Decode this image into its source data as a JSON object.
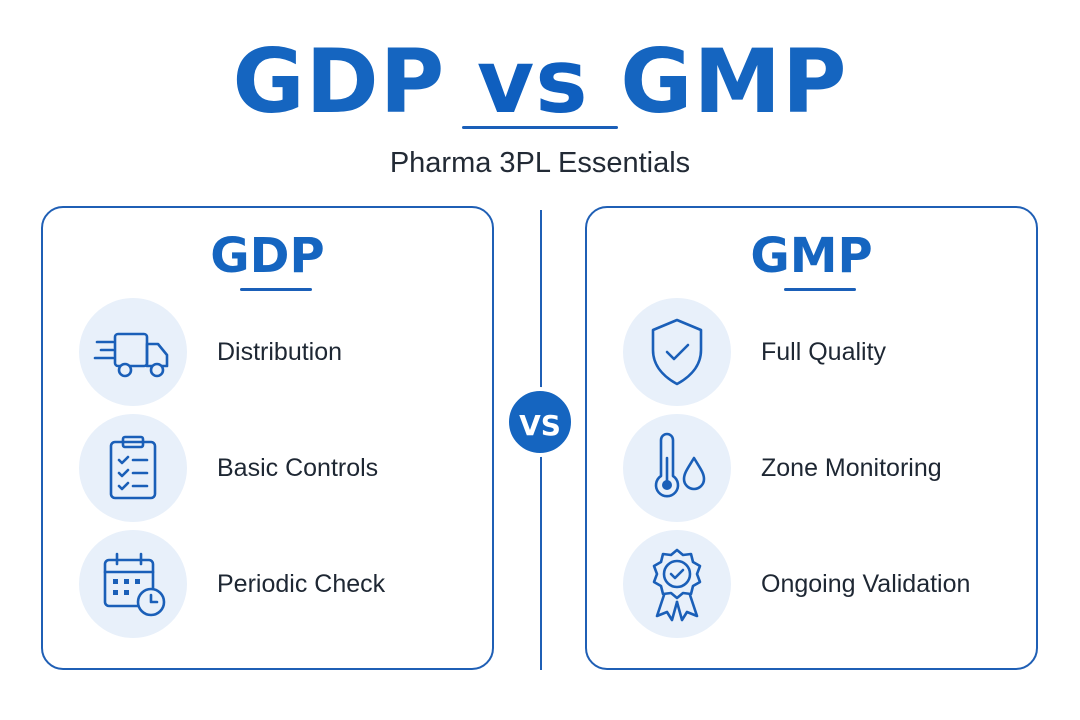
{
  "header": {
    "title_left": "GDP",
    "title_mid": "vs",
    "title_right": "GMP",
    "subtitle": "Pharma 3PL Essentials"
  },
  "vs_badge": "VS",
  "panels": {
    "left": {
      "heading": "GDP",
      "items": [
        {
          "label": "Distribution",
          "icon": "truck-icon"
        },
        {
          "label": "Basic Controls",
          "icon": "clipboard-checklist-icon"
        },
        {
          "label": "Periodic Check",
          "icon": "calendar-clock-icon"
        }
      ]
    },
    "right": {
      "heading": "GMP",
      "items": [
        {
          "label": "Full Quality",
          "icon": "shield-check-icon"
        },
        {
          "label": "Zone Monitoring",
          "icon": "thermometer-droplet-icon"
        },
        {
          "label": "Ongoing Validation",
          "icon": "award-badge-icon"
        }
      ]
    }
  },
  "colors": {
    "primary": "#1565c0",
    "border": "#1f5fb5",
    "icon_bg": "#e8f0fa",
    "text": "#1e2733"
  }
}
